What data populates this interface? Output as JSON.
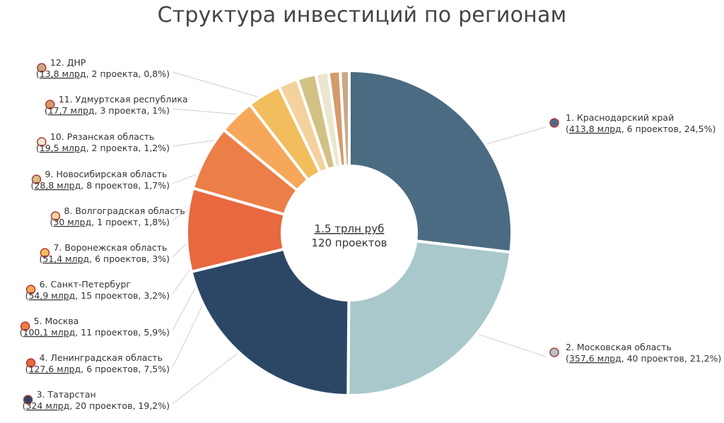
{
  "title": "Структура инвестиций по регионам",
  "chart_data": {
    "type": "pie",
    "donut": true,
    "center": {
      "total": "1.5 трлн руб",
      "projects": "120 проектов"
    },
    "slices": [
      {
        "label": "1. Краснодарский край",
        "value_text": "413,8 млрд",
        "rest_text": ", 6 проектов, 24,5%)",
        "value": 413.8,
        "projects": 6,
        "percent": 24.5,
        "color": "#4b6b82",
        "icon": "krasnodar-coat-of-arms"
      },
      {
        "label": "2. Московская область",
        "value_text": "357,6 млрд",
        "rest_text": ", 40 проектов, 21,2%)",
        "value": 357.6,
        "projects": 40,
        "percent": 21.2,
        "color": "#a9c8cc",
        "icon": "moscow-oblast-coat-of-arms"
      },
      {
        "label": "3. Татарстан",
        "value_text": "324 млрд",
        "rest_text": ", 20 проектов, 19,2%)",
        "value": 324,
        "projects": 20,
        "percent": 19.2,
        "color": "#2c4766",
        "icon": "tatarstan-coat-of-arms"
      },
      {
        "label": "4. Ленинградская область",
        "value_text": "127,6 млрд",
        "rest_text": ", 6 проектов, 7,5%)",
        "value": 127.6,
        "projects": 6,
        "percent": 7.5,
        "color": "#e8683f",
        "icon": "leningrad-oblast-coat-of-arms"
      },
      {
        "label": "5. Москва",
        "value_text": "100,1 млрд",
        "rest_text": ", 11 проектов, 5,9%)",
        "value": 100.1,
        "projects": 11,
        "percent": 5.9,
        "color": "#ec7e47",
        "icon": "moscow-coat-of-arms"
      },
      {
        "label": "6. Санкт-Петербург",
        "value_text": "54,9 млрд",
        "rest_text": ", 15 проектов, 3,2%)",
        "value": 54.9,
        "projects": 15,
        "percent": 3.2,
        "color": "#f6a75a",
        "icon": "saint-petersburg-coat-of-arms"
      },
      {
        "label": "7. Воронежская область",
        "value_text": "51,4 млрд",
        "rest_text": ", 6 проектов, 3%)",
        "value": 51.4,
        "projects": 6,
        "percent": 3.0,
        "color": "#f2bd5c",
        "icon": "voronezh-oblast-coat-of-arms"
      },
      {
        "label": "8. Волгоградская область",
        "value_text": "30 млрд",
        "rest_text": ", 1 проект, 1,8%)",
        "value": 30,
        "projects": 1,
        "percent": 1.8,
        "color": "#f4d29e",
        "icon": "volgograd-oblast-coat-of-arms"
      },
      {
        "label": "9. Новосибирская область",
        "value_text": "28,8 млрд",
        "rest_text": ", 8 проектов, 1,7%)",
        "value": 28.8,
        "projects": 8,
        "percent": 1.7,
        "color": "#d1c185",
        "icon": "novosibirsk-oblast-coat-of-arms"
      },
      {
        "label": "10. Рязанская область",
        "value_text": "19,5 млрд",
        "rest_text": ", 2 проекта, 1,2%)",
        "value": 19.5,
        "projects": 2,
        "percent": 1.2,
        "color": "#ece6cf",
        "icon": "ryazan-oblast-coat-of-arms"
      },
      {
        "label": "11. Удмуртская республика",
        "value_text": "17,7 млрд",
        "rest_text": ", 3 проекта, 1%)",
        "value": 17.7,
        "projects": 3,
        "percent": 1.0,
        "color": "#d49a6a",
        "icon": "udmurtia-coat-of-arms"
      },
      {
        "label": "12. ДНР",
        "value_text": "13,8 млрд",
        "rest_text": ", 2 проекта, 0,8%)",
        "value": 13.8,
        "projects": 2,
        "percent": 0.8,
        "color": "#c9a886",
        "icon": "dnr-coat-of-arms"
      }
    ]
  }
}
